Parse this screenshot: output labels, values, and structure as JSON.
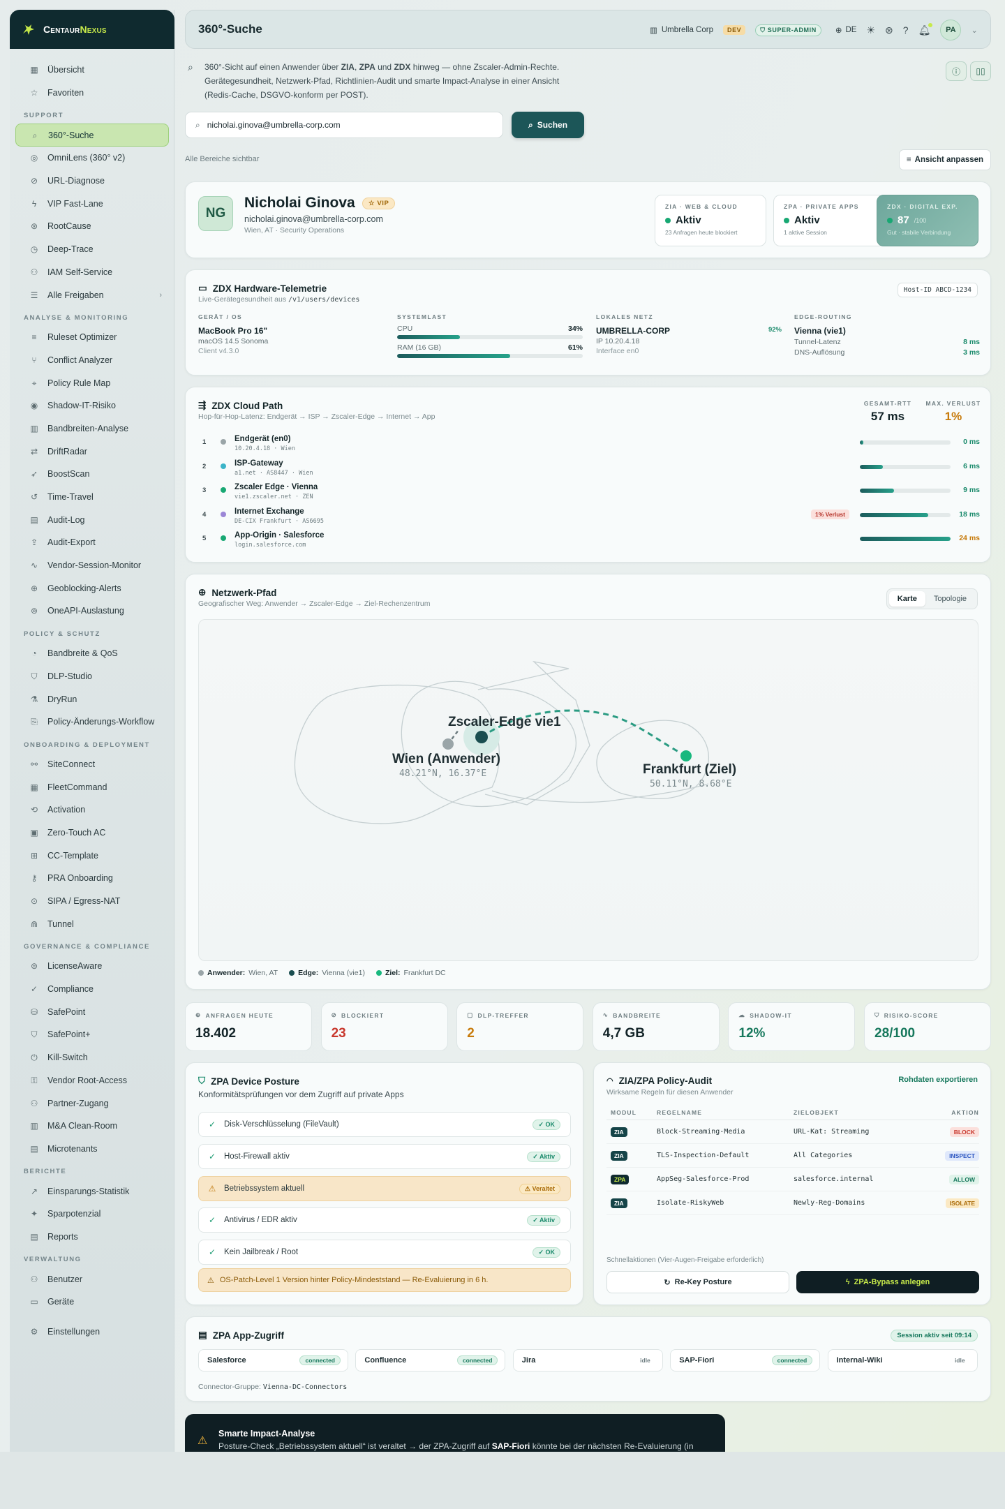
{
  "brand": {
    "name_a": "Centaur",
    "name_b": "Nexus"
  },
  "nav": [
    {
      "type": "item",
      "label": "Übersicht",
      "icon": "grid-icon",
      "glyph": "▦"
    },
    {
      "type": "item",
      "label": "Favoriten",
      "icon": "star-icon",
      "glyph": "☆"
    },
    {
      "type": "section",
      "label": "SUPPORT"
    },
    {
      "type": "item",
      "label": "360°-Suche",
      "icon": "search-icon",
      "glyph": "⌕",
      "active": true
    },
    {
      "type": "item",
      "label": "OmniLens (360° v2)",
      "icon": "lens-icon",
      "glyph": "◎"
    },
    {
      "type": "item",
      "label": "URL-Diagnose",
      "icon": "link-icon",
      "glyph": "⊘"
    },
    {
      "type": "item",
      "label": "VIP Fast-Lane",
      "icon": "bolt-icon",
      "glyph": "ϟ"
    },
    {
      "type": "item",
      "label": "RootCause",
      "icon": "target-icon",
      "glyph": "⊛"
    },
    {
      "type": "item",
      "label": "Deep-Trace",
      "icon": "trace-icon",
      "glyph": "◷"
    },
    {
      "type": "item",
      "label": "IAM Self-Service",
      "icon": "users-icon",
      "glyph": "⚇"
    },
    {
      "type": "item",
      "label": "Alle Freigaben",
      "icon": "list-icon",
      "glyph": "☰",
      "chevron": "›"
    },
    {
      "type": "section",
      "label": "ANALYSE & MONITORING"
    },
    {
      "type": "item",
      "label": "Ruleset Optimizer",
      "icon": "filter-icon",
      "glyph": "≡"
    },
    {
      "type": "item",
      "label": "Conflict Analyzer",
      "icon": "branch-icon",
      "glyph": "⑂"
    },
    {
      "type": "item",
      "label": "Policy Rule Map",
      "icon": "map-icon",
      "glyph": "⌖"
    },
    {
      "type": "item",
      "label": "Shadow-IT-Risiko",
      "icon": "eye-icon",
      "glyph": "◉"
    },
    {
      "type": "item",
      "label": "Bandbreiten-Analyse",
      "icon": "bars-icon",
      "glyph": "▥"
    },
    {
      "type": "item",
      "label": "DriftRadar",
      "icon": "radar-icon",
      "glyph": "⇄"
    },
    {
      "type": "item",
      "label": "BoostScan",
      "icon": "rocket-icon",
      "glyph": "➶"
    },
    {
      "type": "item",
      "label": "Time-Travel",
      "icon": "history-icon",
      "glyph": "↺"
    },
    {
      "type": "item",
      "label": "Audit-Log",
      "icon": "clipboard-icon",
      "glyph": "▤"
    },
    {
      "type": "item",
      "label": "Audit-Export",
      "icon": "export-icon",
      "glyph": "⇪"
    },
    {
      "type": "item",
      "label": "Vendor-Session-Monitor",
      "icon": "pulse-icon",
      "glyph": "∿"
    },
    {
      "type": "item",
      "label": "Geoblocking-Alerts",
      "icon": "globe-icon",
      "glyph": "⊕"
    },
    {
      "type": "item",
      "label": "OneAPI-Auslastung",
      "icon": "api-icon",
      "glyph": "⊚"
    },
    {
      "type": "section",
      "label": "POLICY & SCHUTZ"
    },
    {
      "type": "item",
      "label": "Bandbreite & QoS",
      "icon": "gauge-icon",
      "glyph": "◔"
    },
    {
      "type": "item",
      "label": "DLP-Studio",
      "icon": "shield-icon",
      "glyph": "⛉"
    },
    {
      "type": "item",
      "label": "DryRun",
      "icon": "flask-icon",
      "glyph": "⚗"
    },
    {
      "type": "item",
      "label": "Policy-Änderungs-Workflow",
      "icon": "doc-icon",
      "glyph": "⎘"
    },
    {
      "type": "section",
      "label": "ONBOARDING & DEPLOYMENT"
    },
    {
      "type": "item",
      "label": "SiteConnect",
      "icon": "network-icon",
      "glyph": "⚯"
    },
    {
      "type": "item",
      "label": "FleetCommand",
      "icon": "fleet-icon",
      "glyph": "▦"
    },
    {
      "type": "item",
      "label": "Activation",
      "icon": "activation-icon",
      "glyph": "⟲"
    },
    {
      "type": "item",
      "label": "Zero-Touch AC",
      "icon": "box-icon",
      "glyph": "▣"
    },
    {
      "type": "item",
      "label": "CC-Template",
      "icon": "template-icon",
      "glyph": "⊞"
    },
    {
      "type": "item",
      "label": "PRA Onboarding",
      "icon": "key-icon",
      "glyph": "⚷"
    },
    {
      "type": "item",
      "label": "SIPA / Egress-NAT",
      "icon": "egress-icon",
      "glyph": "⊙"
    },
    {
      "type": "item",
      "label": "Tunnel",
      "icon": "tunnel-icon",
      "glyph": "⋒"
    },
    {
      "type": "section",
      "label": "GOVERNANCE & COMPLIANCE"
    },
    {
      "type": "item",
      "label": "LicenseAware",
      "icon": "license-icon",
      "glyph": "⊜"
    },
    {
      "type": "item",
      "label": "Compliance",
      "icon": "check-circle-icon",
      "glyph": "✓"
    },
    {
      "type": "item",
      "label": "SafePoint",
      "icon": "safe-icon",
      "glyph": "⛁"
    },
    {
      "type": "item",
      "label": "SafePoint+",
      "icon": "safe-plus-icon",
      "glyph": "⛉"
    },
    {
      "type": "item",
      "label": "Kill-Switch",
      "icon": "power-icon",
      "glyph": "⏻"
    },
    {
      "type": "item",
      "label": "Vendor Root-Access",
      "icon": "lock-icon",
      "glyph": "⚿"
    },
    {
      "type": "item",
      "label": "Partner-Zugang",
      "icon": "partner-icon",
      "glyph": "⚇"
    },
    {
      "type": "item",
      "label": "M&A Clean-Room",
      "icon": "building-icon",
      "glyph": "▥"
    },
    {
      "type": "item",
      "label": "Microtenants",
      "icon": "tenants-icon",
      "glyph": "▤"
    },
    {
      "type": "section",
      "label": "BERICHTE"
    },
    {
      "type": "item",
      "label": "Einsparungs-Statistik",
      "icon": "trend-icon",
      "glyph": "↗"
    },
    {
      "type": "item",
      "label": "Sparpotenzial",
      "icon": "sparkle-icon",
      "glyph": "✦"
    },
    {
      "type": "item",
      "label": "Reports",
      "icon": "report-icon",
      "glyph": "▤"
    },
    {
      "type": "section",
      "label": "VERWALTUNG"
    },
    {
      "type": "item",
      "label": "Benutzer",
      "icon": "users-icon",
      "glyph": "⚇"
    },
    {
      "type": "item",
      "label": "Geräte",
      "icon": "laptop-icon",
      "glyph": "▭"
    },
    {
      "type": "gap"
    },
    {
      "type": "item",
      "label": "Einstellungen",
      "icon": "gear-icon",
      "glyph": "⚙"
    }
  ],
  "header": {
    "title": "360°-Suche",
    "tenant": "Umbrella Corp",
    "env": "DEV",
    "role": "SUPER-ADMIN",
    "lang": "DE",
    "avatar": "PA"
  },
  "intro": {
    "pre": "360°-Sicht auf einen Anwender über ",
    "b1": "ZIA",
    "m1": ", ",
    "b2": "ZPA",
    "m2": " und ",
    "b3": "ZDX",
    "post": " hinweg — ohne Zscaler-Admin-Rechte. Gerätegesundheit, Netzwerk-Pfad, Richtlinien-Audit und smarte Impact-Analyse in einer Ansicht (Redis-Cache, DSGVO-konform per POST)."
  },
  "search": {
    "value": "nicholai.ginova@umbrella-corp.com",
    "button": "Suchen"
  },
  "visibility_note": "Alle Bereiche sichtbar",
  "adapt_button": "Ansicht anpassen",
  "profile": {
    "initials": "NG",
    "name": "Nicholai Ginova",
    "vip": "VIP",
    "email": "nicholai.ginova@umbrella-corp.com",
    "location": "Wien, AT · Security Operations",
    "tiles": [
      {
        "label": "ZIA · WEB & CLOUD",
        "value": "Aktiv",
        "sub": "23 Anfragen heute blockiert"
      },
      {
        "label": "ZPA · PRIVATE APPS",
        "value": "Aktiv",
        "sub": "1 aktive Session"
      },
      {
        "label": "ZDX · DIGITAL EXP.",
        "value": "87",
        "unit": "/100",
        "sub": "Gut · stabile Verbindung",
        "score": 87
      }
    ]
  },
  "telemetry": {
    "title": "ZDX Hardware-Telemetrie",
    "sub": "Live-Gerätegesundheit aus ",
    "path": "/v1/users/devices",
    "host_id": "Host-ID ABCD-1234",
    "device": {
      "h": "GERÄT / OS",
      "name": "MacBook Pro 16\"",
      "os": "macOS 14.5 Sonoma",
      "client": "Client v4.3.0"
    },
    "load": {
      "h": "SYSTEMLAST",
      "cpu_label": "CPU",
      "cpu_pct": 34,
      "cpu_text": "34%",
      "ram_label": "RAM (16 GB)",
      "ram_pct": 61,
      "ram_text": "61%"
    },
    "net": {
      "h": "LOKALES NETZ",
      "name": "UMBRELLA-CORP",
      "pct": "92%",
      "ip": "IP 10.20.4.18",
      "iface": "Interface en0"
    },
    "edge": {
      "h": "EDGE-ROUTING",
      "name": "Vienna (vie1)",
      "lat_label": "Tunnel-Latenz",
      "lat": "8 ms",
      "dns_label": "DNS-Auflösung",
      "dns": "3 ms"
    }
  },
  "cloud_path": {
    "title": "ZDX Cloud Path",
    "sub": "Hop-für-Hop-Latenz: Endgerät → ISP → Zscaler-Edge → Internet → App",
    "rtt_label": "GESAMT-RTT",
    "rtt": "57 ms",
    "loss_label": "MAX. VERLUST",
    "loss": "1%",
    "hops": [
      {
        "n": "1",
        "name": "Endgerät (en0)",
        "addr": "10.20.4.18 · Wien",
        "ms": "0 ms",
        "val": 0,
        "color": "#9aa5a8"
      },
      {
        "n": "2",
        "name": "ISP-Gateway",
        "addr": "a1.net · AS8447 · Wien",
        "ms": "6 ms",
        "val": 6,
        "color": "#3cb4c8"
      },
      {
        "n": "3",
        "name": "Zscaler Edge · Vienna",
        "addr": "vie1.zscaler.net · ZEN",
        "ms": "9 ms",
        "val": 9,
        "color": "#18a873"
      },
      {
        "n": "4",
        "name": "Internet Exchange",
        "addr": "DE-CIX Frankfurt · AS6695",
        "ms": "18 ms",
        "val": 18,
        "color": "#9b86d6",
        "loss": "1% Verlust"
      },
      {
        "n": "5",
        "name": "App-Origin · Salesforce",
        "addr": "login.salesforce.com",
        "ms": "24 ms",
        "val": 24,
        "color": "#18a873"
      }
    ]
  },
  "network_path": {
    "title": "Netzwerk-Pfad",
    "sub": "Geografischer Weg: Anwender → Zscaler-Edge → Ziel-Rechenzentrum",
    "tab_map": "Karte",
    "tab_topo": "Topologie",
    "edge_label": "Zscaler-Edge vie1",
    "user_label": "Wien (Anwender)",
    "user_coord": "48.21°N, 16.37°E",
    "dest_label": "Frankfurt (Ziel)",
    "dest_coord": "50.11°N, 8.68°E",
    "legend": [
      {
        "k": "Anwender:",
        "v": "Wien, AT",
        "color": "#9aa5a8"
      },
      {
        "k": "Edge:",
        "v": "Vienna (vie1)",
        "color": "#1a4e50"
      },
      {
        "k": "Ziel:",
        "v": "Frankfurt DC",
        "color": "#18b87e"
      }
    ]
  },
  "kpis": [
    {
      "label": "ANFRAGEN HEUTE",
      "value": "18.402",
      "icon": "globe-icon",
      "glyph": "⊕",
      "color": "#132428"
    },
    {
      "label": "BLOCKIERT",
      "value": "23",
      "icon": "block-icon",
      "glyph": "⊘",
      "color": "#c8372c"
    },
    {
      "label": "DLP-TREFFER",
      "value": "2",
      "icon": "file-icon",
      "glyph": "▢",
      "color": "#c77a0a"
    },
    {
      "label": "BANDBREITE",
      "value": "4,7 GB",
      "icon": "pulse-icon",
      "glyph": "∿",
      "color": "#132428"
    },
    {
      "label": "SHADOW-IT",
      "value": "12%",
      "icon": "cloud-icon",
      "glyph": "☁",
      "color": "#16785c"
    },
    {
      "label": "RISIKO-SCORE",
      "value": "28/100",
      "icon": "shield-icon",
      "glyph": "⛉",
      "color": "#16785c"
    }
  ],
  "posture": {
    "title": "ZPA Device Posture",
    "sub": "Konformitätsprüfungen vor dem Zugriff auf private Apps",
    "items": [
      {
        "label": "Disk-Verschlüsselung (FileVault)",
        "badge": "✓ OK"
      },
      {
        "label": "Host-Firewall aktiv",
        "badge": "✓ Aktiv"
      },
      {
        "label": "Betriebssystem aktuell",
        "badge": "⚠ Veraltet",
        "warn": true
      },
      {
        "label": "Antivirus / EDR aktiv",
        "badge": "✓ Aktiv"
      },
      {
        "label": "Kein Jailbreak / Root",
        "badge": "✓ OK"
      }
    ],
    "note": "OS-Patch-Level 1 Version hinter Policy-Mindeststand — Re-Evaluierung in 6 h."
  },
  "audit": {
    "title": "ZIA/ZPA Policy-Audit",
    "sub": "Wirksame Regeln für diesen Anwender",
    "export": "Rohdaten exportieren",
    "cols": [
      "MODUL",
      "REGELNAME",
      "ZIELOBJEKT",
      "AKTION"
    ],
    "rows": [
      {
        "mod": "ZIA",
        "rule": "Block-Streaming-Media",
        "target": "URL-Kat: Streaming",
        "action": "BLOCK",
        "bg": "#fbe0dc",
        "fg": "#c8372c"
      },
      {
        "mod": "ZIA",
        "rule": "TLS-Inspection-Default",
        "target": "All Categories",
        "action": "INSPECT",
        "bg": "#dfe8fb",
        "fg": "#2b55c0"
      },
      {
        "mod": "ZPA",
        "rule": "AppSeg-Salesforce-Prod",
        "target": "salesforce.internal",
        "action": "ALLOW",
        "bg": "#e0f3ea",
        "fg": "#16785c"
      },
      {
        "mod": "ZIA",
        "rule": "Isolate-RiskyWeb",
        "target": "Newly-Reg-Domains",
        "action": "ISOLATE",
        "bg": "#fbe9c4",
        "fg": "#a96a06"
      }
    ],
    "quick_label": "Schnellaktionen (Vier-Augen-Freigabe erforderlich)",
    "btn_rekey": "Re-Key Posture",
    "btn_bypass": "ZPA-Bypass anlegen"
  },
  "app_access": {
    "title": "ZPA App-Zugriff",
    "session": "Session aktiv seit 09:14",
    "apps": [
      {
        "name": "Salesforce",
        "status": "connected"
      },
      {
        "name": "Confluence",
        "status": "connected"
      },
      {
        "name": "Jira",
        "status": "idle"
      },
      {
        "name": "SAP-Fiori",
        "status": "connected"
      },
      {
        "name": "Internal-Wiki",
        "status": "idle"
      }
    ],
    "group_label": "Connector-Gruppe: ",
    "group": "Vienna-DC-Connectors"
  },
  "impact": {
    "title": "Smarte Impact-Analyse",
    "pre": "Posture-Check „Betriebssystem aktuell“ ist veraltet → der ZPA-Zugriff auf ",
    "app": "SAP-Fiori",
    "post": " könnte bei der nächsten Re-Evaluierung (in"
  }
}
